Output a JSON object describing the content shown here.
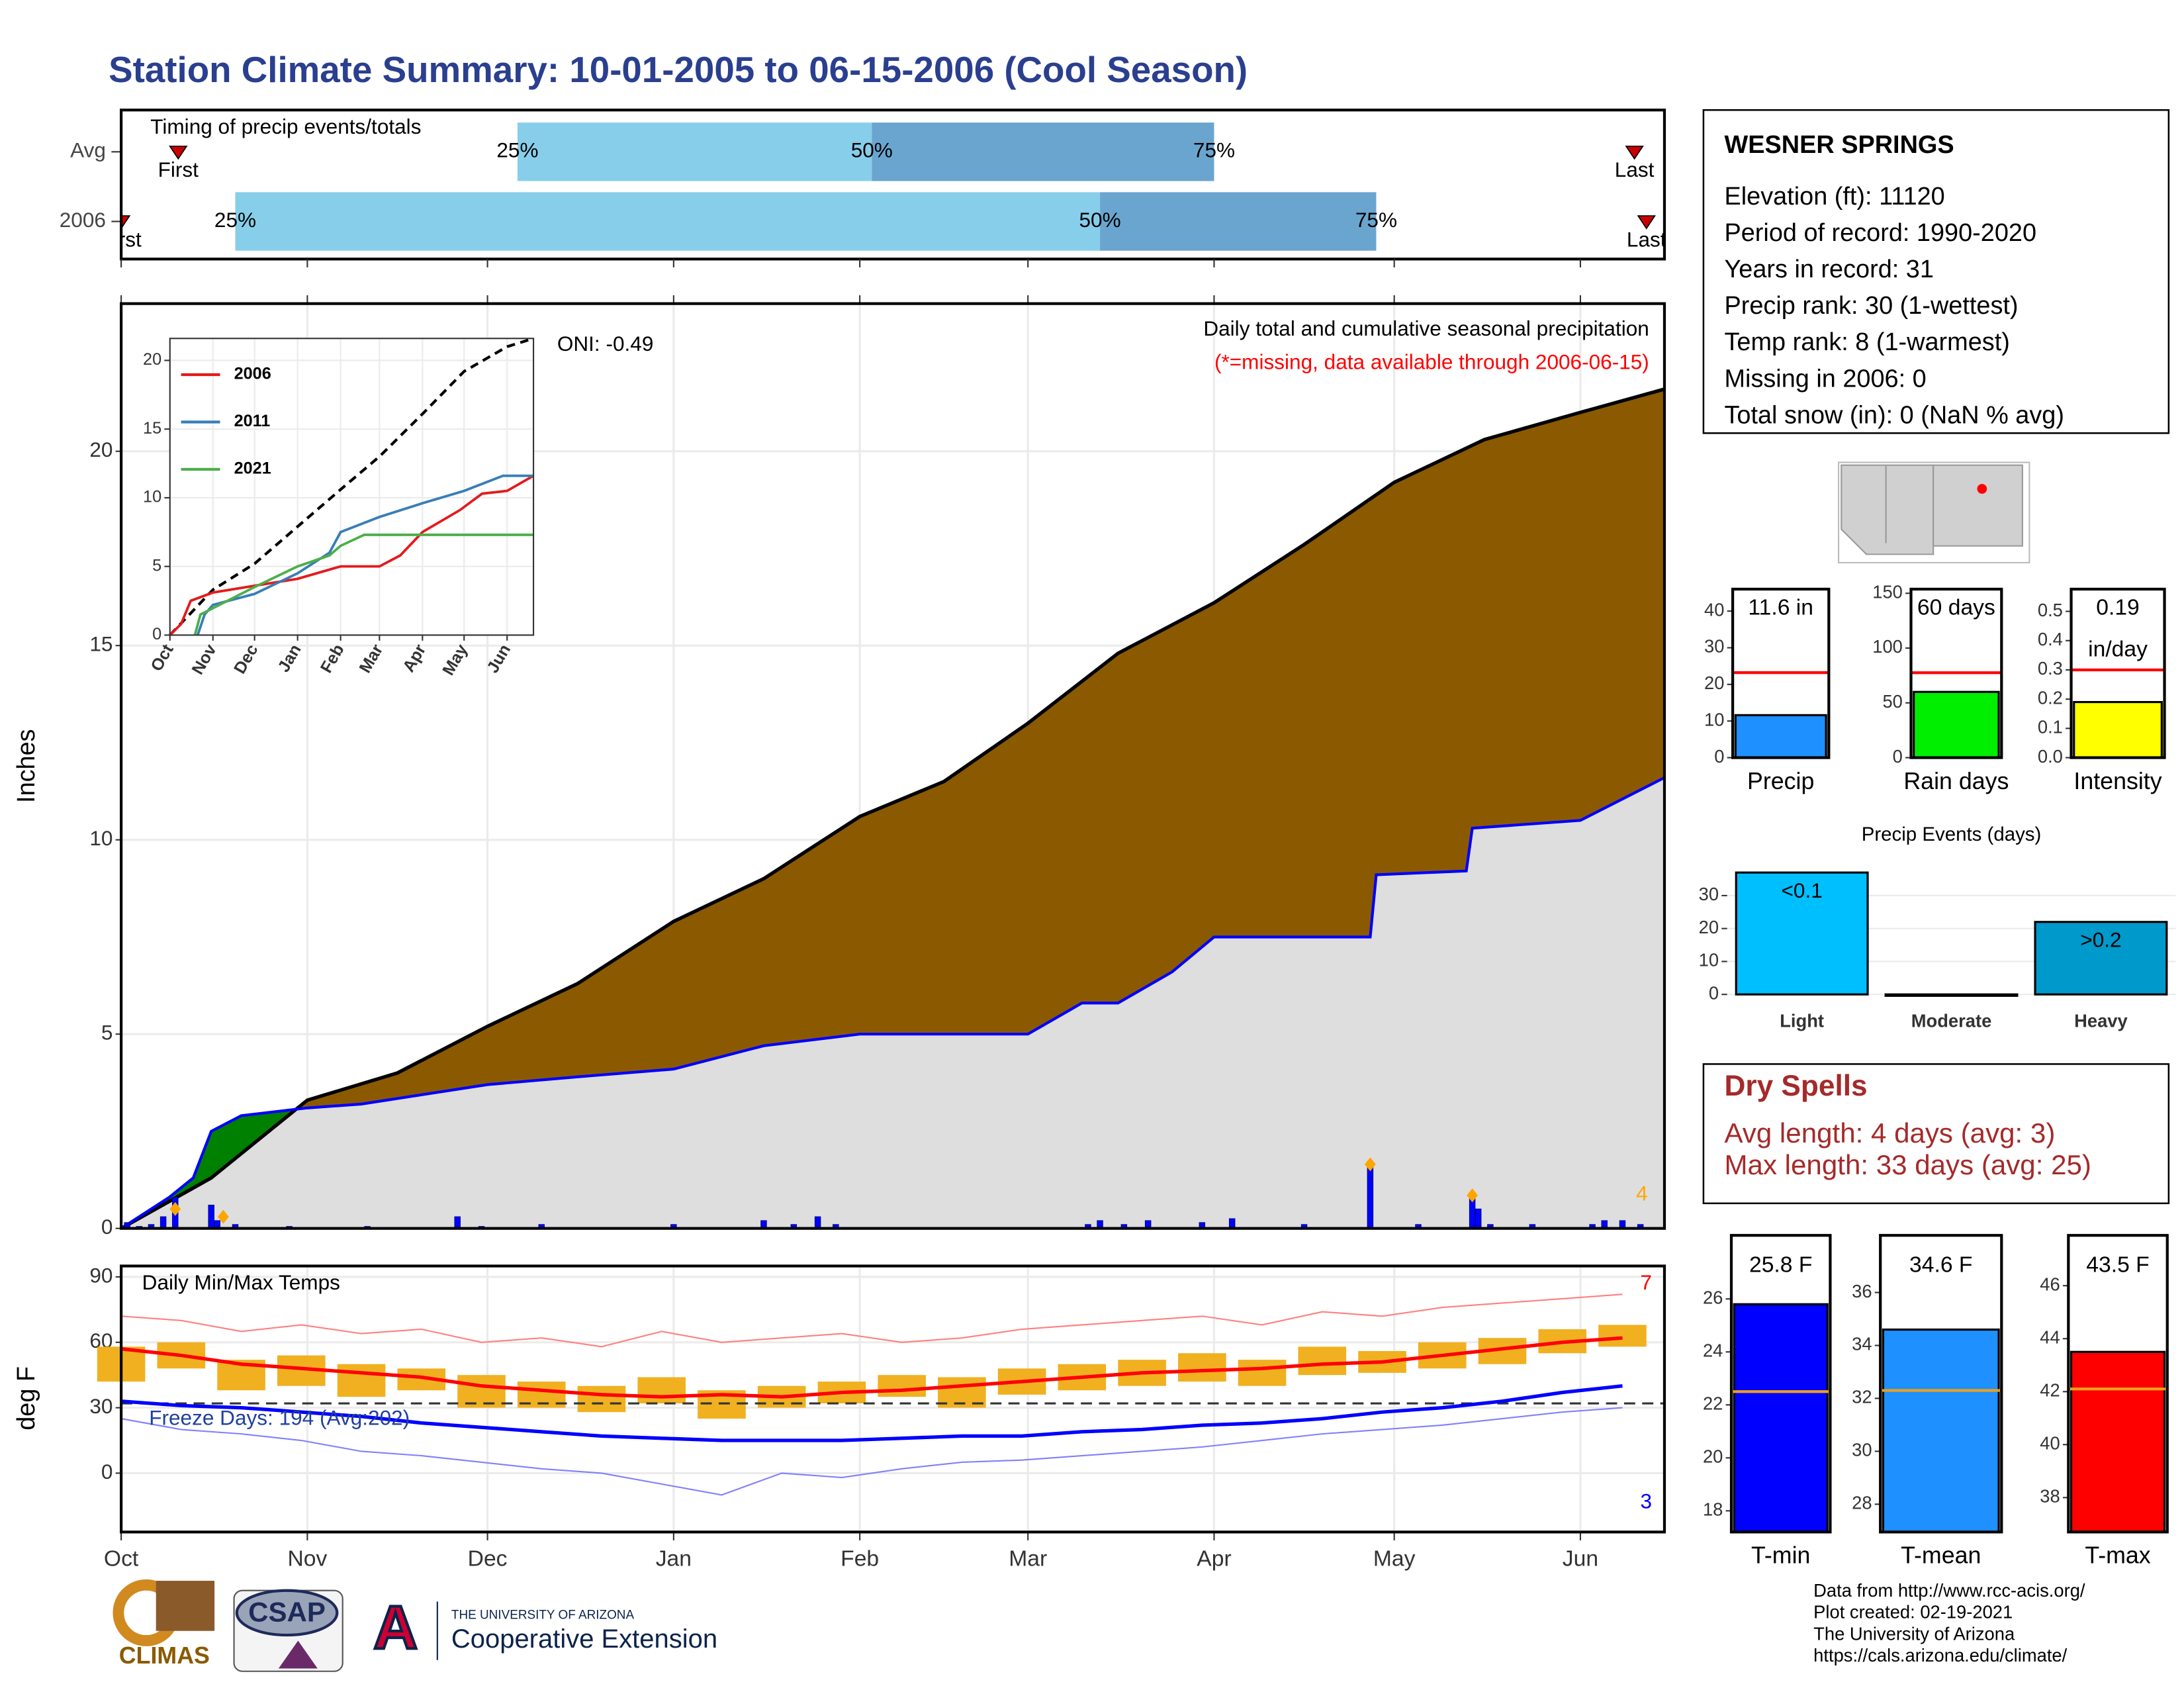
{
  "title": "Station Climate Summary: 10-01-2005 to 06-15-2006 (Cool Season)",
  "station": {
    "name": "WESNER SPRINGS",
    "lines": [
      "Elevation (ft): 11120",
      "Period of record: 1990-2020",
      "Years in record: 31",
      "Precip rank: 30 (1-wettest)",
      "Temp rank: 8 (1-warmest)",
      "Missing in 2006: 0",
      "Total snow (in): 0 (NaN % avg)"
    ]
  },
  "dry_spells": {
    "title": "Dry Spells",
    "lines": [
      "Avg length: 4 days (avg: 3)",
      "Max length: 33 days (avg: 25)"
    ]
  },
  "footer": {
    "credits": [
      "Data from http://www.rcc-acis.org/",
      "Plot created: 02-19-2021",
      "The University of Arizona",
      "https://cals.arizona.edu/climate/"
    ],
    "logos": {
      "climas": "CLIMAS",
      "csap": "CSAP",
      "ua_mark": "A",
      "university": "THE UNIVERSITY OF ARIZONA",
      "extension": "Cooperative Extension"
    }
  },
  "chart_data": [
    {
      "type": "timing",
      "title": "Timing of precip events/totals",
      "xlim": [
        0,
        257
      ],
      "rows": [
        {
          "label": "Avg",
          "first": 9.5,
          "last": 252,
          "q25": 66,
          "q50": 125,
          "q75": 182
        },
        {
          "label": "2006",
          "first": 0,
          "last": 254,
          "q25": 19,
          "q50": 163,
          "q75": 209
        }
      ],
      "quantile_labels": [
        "25%",
        "50%",
        "75%"
      ],
      "first_label": "First",
      "last_label": "Last",
      "colors": [
        "#87ceeb",
        "#6aa5cf"
      ],
      "marker_color": "#cc0000"
    },
    {
      "type": "area",
      "ylabel": "Inches",
      "xlim": [
        0,
        257
      ],
      "ylim": [
        0,
        23.8
      ],
      "yticks": [
        0,
        5,
        10,
        15,
        20
      ],
      "grid": true,
      "annotations": [
        "Daily total and cumulative seasonal precipitation",
        "(*=missing, data available through 2006-06-15)",
        "ONI: -0.49",
        "4"
      ],
      "average": {
        "color": "#8b5a00",
        "x": [
          0,
          15,
          31,
          46,
          61,
          76,
          92,
          107,
          123,
          137,
          151,
          166,
          182,
          197,
          212,
          227,
          243,
          257
        ],
        "values": [
          0,
          1.3,
          3.3,
          4.0,
          5.2,
          6.3,
          7.9,
          9.0,
          10.6,
          11.5,
          13.0,
          14.8,
          16.1,
          17.6,
          19.2,
          20.3,
          21.0,
          21.6
        ]
      },
      "observed": {
        "color": "#0000ff",
        "surplus_color": "#008000",
        "fill": "#dedede",
        "x": [
          0,
          8,
          12,
          15,
          20,
          31,
          40,
          61,
          76,
          92,
          107,
          123,
          151,
          160,
          166,
          175,
          182,
          208,
          209,
          224,
          225,
          243,
          257
        ],
        "values": [
          0,
          0.8,
          1.3,
          2.5,
          2.9,
          3.1,
          3.2,
          3.7,
          3.9,
          4.1,
          4.7,
          5.0,
          5.0,
          5.8,
          5.8,
          6.6,
          7.5,
          7.5,
          9.1,
          9.2,
          10.3,
          10.5,
          11.6
        ]
      },
      "daily": {
        "color": "#0000ff",
        "x": [
          1,
          3,
          5,
          7,
          9,
          15,
          16,
          19,
          28,
          41,
          56,
          60,
          70,
          92,
          107,
          112,
          116,
          119,
          161,
          163,
          167,
          171,
          180,
          185,
          197,
          208,
          216,
          225,
          226,
          228,
          235,
          245,
          247,
          250,
          253
        ],
        "values": [
          0.15,
          0.05,
          0.1,
          0.3,
          0.8,
          0.6,
          0.2,
          0.1,
          0.05,
          0.05,
          0.3,
          0.05,
          0.1,
          0.1,
          0.2,
          0.1,
          0.3,
          0.1,
          0.1,
          0.2,
          0.1,
          0.2,
          0.15,
          0.25,
          0.1,
          1.6,
          0.1,
          0.85,
          0.5,
          0.1,
          0.1,
          0.1,
          0.2,
          0.2,
          0.1
        ]
      },
      "extremes": {
        "color": "#ffa500",
        "x": [
          9,
          17,
          208,
          225
        ],
        "values": [
          0.5,
          0.3,
          1.65,
          0.85
        ]
      }
    },
    {
      "type": "line",
      "xlim": [
        0,
        262
      ],
      "ylim": [
        0,
        21.6
      ],
      "yticks": [
        0,
        5,
        10,
        15,
        20
      ],
      "xticks": [
        {
          "value": 0,
          "label": "Oct"
        },
        {
          "value": 31,
          "label": "Nov"
        },
        {
          "value": 61,
          "label": "Dec"
        },
        {
          "value": 92,
          "label": "Jan"
        },
        {
          "value": 123,
          "label": "Feb"
        },
        {
          "value": 151,
          "label": "Mar"
        },
        {
          "value": 182,
          "label": "Apr"
        },
        {
          "value": 212,
          "label": "May"
        },
        {
          "value": 243,
          "label": "Jun"
        }
      ],
      "average": {
        "color": "#000000",
        "x": [
          0,
          31,
          61,
          92,
          123,
          151,
          182,
          212,
          243,
          262
        ],
        "values": [
          0,
          3.3,
          5.2,
          7.9,
          10.6,
          13.0,
          16.1,
          19.2,
          21.0,
          21.6
        ]
      },
      "series": [
        {
          "name": "2006",
          "color": "#e41a1c",
          "x": [
            0,
            8,
            15,
            31,
            92,
            123,
            151,
            166,
            182,
            209,
            225,
            243,
            262
          ],
          "values": [
            0,
            0.8,
            2.5,
            3.1,
            4.1,
            5.0,
            5.0,
            5.8,
            7.5,
            9.1,
            10.3,
            10.5,
            11.6
          ]
        },
        {
          "name": "2011",
          "color": "#377eb8",
          "x": [
            20,
            25,
            31,
            61,
            92,
            115,
            123,
            151,
            182,
            212,
            240,
            262
          ],
          "values": [
            0,
            1.5,
            2.2,
            3.0,
            4.5,
            6.0,
            7.5,
            8.6,
            9.6,
            10.5,
            11.6,
            11.6
          ]
        },
        {
          "name": "2021",
          "color": "#4daf4a",
          "x": [
            18,
            22,
            61,
            92,
            115,
            123,
            140,
            151,
            262
          ],
          "values": [
            0,
            1.5,
            3.5,
            5.0,
            5.8,
            6.5,
            7.3,
            7.3,
            7.3
          ]
        }
      ]
    },
    {
      "type": "temps",
      "title": "Daily Min/Max Temps",
      "ylabel": "deg F",
      "xlim": [
        0,
        257
      ],
      "ylim": [
        -27,
        95
      ],
      "yticks": [
        0,
        30,
        60,
        90
      ],
      "xticks": [
        {
          "value": 0,
          "label": "Oct"
        },
        {
          "value": 31,
          "label": "Nov"
        },
        {
          "value": 61,
          "label": "Dec"
        },
        {
          "value": 92,
          "label": "Jan"
        },
        {
          "value": 123,
          "label": "Feb"
        },
        {
          "value": 151,
          "label": "Mar"
        },
        {
          "value": 182,
          "label": "Apr"
        },
        {
          "value": 212,
          "label": "May"
        },
        {
          "value": 243,
          "label": "Jun"
        }
      ],
      "freeze": 32,
      "annotations": [
        "Freeze Days: 194 (Avg:202)",
        "7",
        "3"
      ],
      "annotation_colors": [
        "#1f3f9f",
        "#ff0000",
        "#0000ff"
      ],
      "x": [
        0,
        10,
        20,
        30,
        40,
        50,
        60,
        70,
        80,
        90,
        100,
        110,
        120,
        130,
        140,
        150,
        160,
        170,
        180,
        190,
        200,
        210,
        220,
        230,
        240,
        250
      ],
      "range_color": "#f0b020",
      "range_low": [
        42,
        48,
        38,
        40,
        35,
        38,
        30,
        30,
        28,
        32,
        25,
        30,
        32,
        35,
        30,
        36,
        38,
        40,
        42,
        40,
        45,
        46,
        48,
        50,
        55,
        58
      ],
      "range_high": [
        58,
        60,
        52,
        54,
        50,
        48,
        45,
        42,
        40,
        44,
        38,
        40,
        42,
        45,
        44,
        48,
        50,
        52,
        55,
        52,
        58,
        56,
        60,
        62,
        66,
        68
      ],
      "series": [
        {
          "color": "#ff0000",
          "width": 2.5,
          "values": [
            57,
            54,
            50,
            48,
            46,
            44,
            40,
            38,
            36,
            35,
            36,
            35,
            37,
            38,
            40,
            42,
            44,
            46,
            47,
            48,
            50,
            51,
            54,
            57,
            60,
            62
          ]
        },
        {
          "color": "#0000ff",
          "width": 2.5,
          "values": [
            33,
            31,
            30,
            28,
            26,
            23,
            21,
            19,
            17,
            16,
            15,
            15,
            15,
            16,
            17,
            17,
            19,
            20,
            22,
            23,
            25,
            28,
            30,
            33,
            37,
            40
          ]
        },
        {
          "color": "#ff8080",
          "width": 1,
          "values": [
            72,
            70,
            65,
            68,
            64,
            66,
            60,
            62,
            58,
            65,
            60,
            62,
            64,
            60,
            62,
            66,
            68,
            70,
            72,
            68,
            74,
            72,
            76,
            78,
            80,
            82
          ]
        },
        {
          "color": "#8080ff",
          "width": 1,
          "values": [
            25,
            20,
            18,
            15,
            10,
            8,
            5,
            2,
            0,
            -5,
            -10,
            0,
            -2,
            2,
            5,
            6,
            8,
            10,
            12,
            15,
            18,
            20,
            22,
            25,
            28,
            30
          ]
        }
      ]
    },
    {
      "type": "gauge",
      "category": "Precip",
      "value": 11.6,
      "value_label": "11.6 in",
      "average": 23.2,
      "average_color": "#ff0000",
      "color": "#1e90ff",
      "ylim": [
        0,
        46
      ],
      "yticks": [
        0,
        10,
        20,
        30,
        40
      ]
    },
    {
      "type": "gauge",
      "category": "Rain days",
      "value": 60,
      "value_label": "60 days",
      "average": 77.5,
      "average_color": "#ff0000",
      "color": "#00ee00",
      "ylim": [
        0,
        153.8
      ],
      "yticks": [
        0,
        50,
        100,
        150
      ]
    },
    {
      "type": "gauge",
      "category": "Intensity",
      "value": 0.19,
      "value_label": "0.19",
      "unit": "in/day",
      "average": 0.3,
      "average_color": "#ff0000",
      "color": "#ffff00",
      "ylim": [
        0,
        0.576
      ],
      "yticks": [
        {
          "value": 0,
          "label": "0.0"
        },
        0.1,
        0.2,
        0.3,
        0.4,
        0.5
      ]
    },
    {
      "type": "bar",
      "title": "Precip Events (days)",
      "categories": [
        "Light",
        "Moderate",
        "Heavy"
      ],
      "values": [
        37,
        0,
        22
      ],
      "bar_labels": [
        "<0.1",
        null,
        ">0.2"
      ],
      "colors": [
        "#00bfff",
        "#1e90ff",
        "#0099cc"
      ],
      "ylim": [
        0,
        38.9
      ],
      "yticks": [
        0,
        10,
        20,
        30
      ]
    },
    {
      "type": "gauge",
      "category": "T-min",
      "value": 25.8,
      "value_label": "25.8 F",
      "average": 22.5,
      "average_color": "#e8a020",
      "color": "#0000ff",
      "ylim": [
        17.2,
        28.4
      ],
      "yticks": [
        18,
        20,
        22,
        24,
        26
      ]
    },
    {
      "type": "gauge",
      "category": "T-mean",
      "value": 34.6,
      "value_label": "34.6 F",
      "average": 32.3,
      "average_color": "#e8a020",
      "color": "#1e90ff",
      "ylim": [
        26.95,
        38.16
      ],
      "yticks": [
        28,
        30,
        32,
        34,
        36
      ]
    },
    {
      "type": "gauge",
      "category": "T-max",
      "value": 43.5,
      "value_label": "43.5 F",
      "average": 42.1,
      "average_color": "#e8a020",
      "color": "#ff0000",
      "ylim": [
        36.7,
        47.9
      ],
      "yticks": [
        38,
        40,
        42,
        44,
        46
      ]
    }
  ]
}
